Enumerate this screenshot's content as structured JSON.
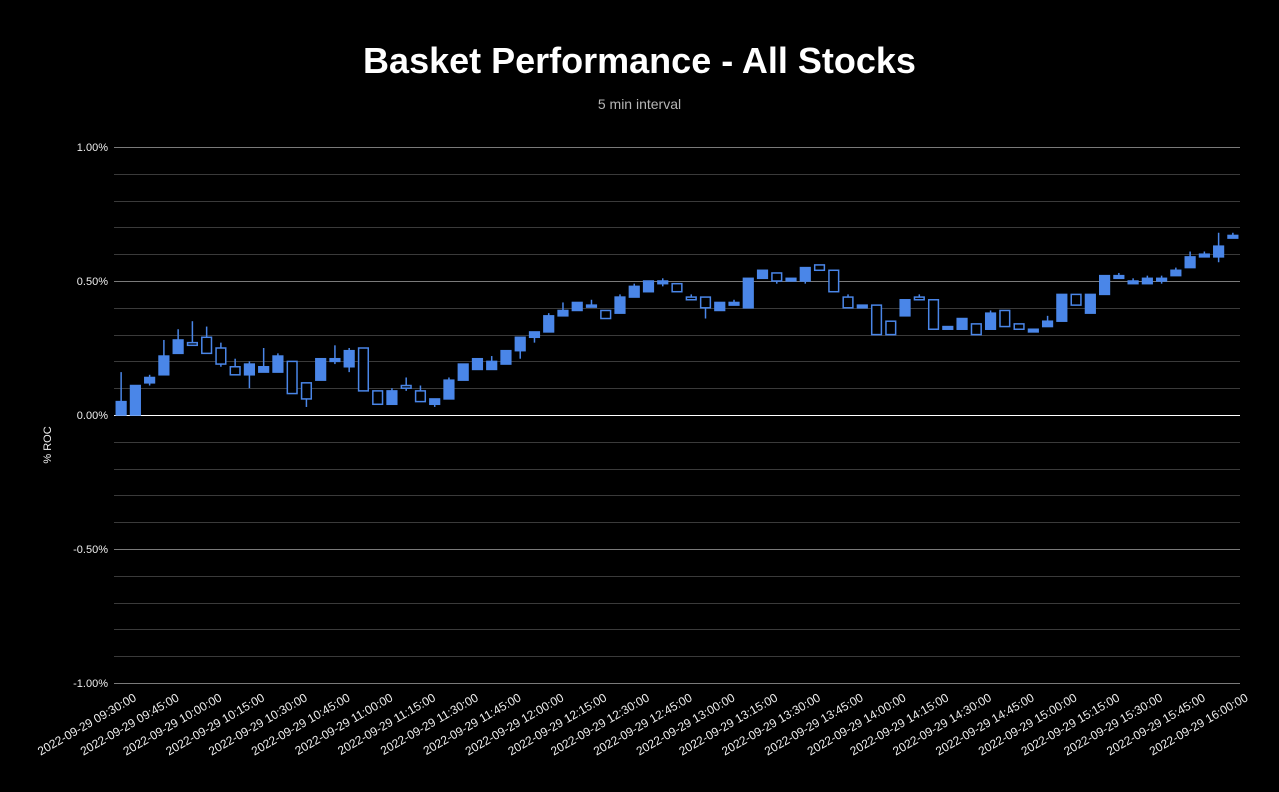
{
  "chart_data": {
    "type": "candlestick",
    "title": "Basket Performance - All Stocks",
    "subtitle": "5 min interval",
    "ylabel": "% ROC",
    "xlabel": "",
    "ylim": [
      -1.0,
      1.0
    ],
    "y_ticks": [
      "1.00%",
      "0.50%",
      "0.00%",
      "-0.50%",
      "-1.00%"
    ],
    "y_tick_values": [
      1.0,
      0.5,
      0.0,
      -0.5,
      -1.0
    ],
    "x_tick_labels": [
      "2022-09-29 09:30:00",
      "2022-09-29 09:45:00",
      "2022-09-29 10:00:00",
      "2022-09-29 10:15:00",
      "2022-09-29 10:30:00",
      "2022-09-29 10:45:00",
      "2022-09-29 11:00:00",
      "2022-09-29 11:15:00",
      "2022-09-29 11:30:00",
      "2022-09-29 11:45:00",
      "2022-09-29 12:00:00",
      "2022-09-29 12:15:00",
      "2022-09-29 12:30:00",
      "2022-09-29 12:45:00",
      "2022-09-29 13:00:00",
      "2022-09-29 13:15:00",
      "2022-09-29 13:30:00",
      "2022-09-29 13:45:00",
      "2022-09-29 14:00:00",
      "2022-09-29 14:15:00",
      "2022-09-29 14:30:00",
      "2022-09-29 14:45:00",
      "2022-09-29 15:00:00",
      "2022-09-29 15:15:00",
      "2022-09-29 15:30:00",
      "2022-09-29 15:45:00",
      "2022-09-29 16:00:00"
    ],
    "grid": true,
    "colors": {
      "candle": "#4a86e8",
      "background": "#000000",
      "gridline": "#3a3a3a",
      "major_gridline": "#7a7a7a",
      "zero_line": "#ffffff"
    },
    "series": [
      {
        "ohlc": [
          [
            0.0,
            0.16,
            0.0,
            0.05
          ],
          [
            0.0,
            0.11,
            0.0,
            0.11
          ],
          [
            0.12,
            0.15,
            0.11,
            0.14
          ],
          [
            0.15,
            0.28,
            0.15,
            0.22
          ],
          [
            0.23,
            0.32,
            0.23,
            0.28
          ],
          [
            0.27,
            0.35,
            0.26,
            0.26
          ],
          [
            0.29,
            0.33,
            0.23,
            0.23
          ],
          [
            0.25,
            0.27,
            0.18,
            0.19
          ],
          [
            0.18,
            0.21,
            0.15,
            0.15
          ],
          [
            0.15,
            0.2,
            0.1,
            0.19
          ],
          [
            0.16,
            0.25,
            0.16,
            0.18
          ],
          [
            0.16,
            0.23,
            0.16,
            0.22
          ],
          [
            0.2,
            0.2,
            0.08,
            0.08
          ],
          [
            0.12,
            0.12,
            0.03,
            0.06
          ],
          [
            0.13,
            0.21,
            0.13,
            0.21
          ],
          [
            0.2,
            0.26,
            0.19,
            0.21
          ],
          [
            0.18,
            0.25,
            0.16,
            0.24
          ],
          [
            0.25,
            0.25,
            0.09,
            0.09
          ],
          [
            0.09,
            0.09,
            0.04,
            0.04
          ],
          [
            0.04,
            0.1,
            0.04,
            0.09
          ],
          [
            0.11,
            0.14,
            0.09,
            0.1
          ],
          [
            0.09,
            0.11,
            0.05,
            0.05
          ],
          [
            0.04,
            0.06,
            0.03,
            0.06
          ],
          [
            0.06,
            0.14,
            0.06,
            0.13
          ],
          [
            0.13,
            0.19,
            0.13,
            0.19
          ],
          [
            0.17,
            0.21,
            0.17,
            0.21
          ],
          [
            0.17,
            0.22,
            0.17,
            0.2
          ],
          [
            0.19,
            0.24,
            0.19,
            0.24
          ],
          [
            0.24,
            0.28,
            0.21,
            0.29
          ],
          [
            0.29,
            0.31,
            0.27,
            0.31
          ],
          [
            0.31,
            0.38,
            0.31,
            0.37
          ],
          [
            0.37,
            0.42,
            0.37,
            0.39
          ],
          [
            0.39,
            0.42,
            0.39,
            0.42
          ],
          [
            0.41,
            0.43,
            0.41,
            0.41
          ],
          [
            0.39,
            0.39,
            0.36,
            0.36
          ],
          [
            0.38,
            0.45,
            0.38,
            0.44
          ],
          [
            0.44,
            0.49,
            0.44,
            0.48
          ],
          [
            0.46,
            0.5,
            0.46,
            0.5
          ],
          [
            0.49,
            0.51,
            0.48,
            0.5
          ],
          [
            0.49,
            0.49,
            0.46,
            0.46
          ],
          [
            0.44,
            0.45,
            0.43,
            0.43
          ],
          [
            0.44,
            0.44,
            0.36,
            0.4
          ],
          [
            0.39,
            0.42,
            0.39,
            0.42
          ],
          [
            0.41,
            0.43,
            0.41,
            0.42
          ],
          [
            0.4,
            0.51,
            0.4,
            0.51
          ],
          [
            0.51,
            0.54,
            0.51,
            0.54
          ],
          [
            0.53,
            0.53,
            0.49,
            0.5
          ],
          [
            0.5,
            0.51,
            0.5,
            0.51
          ],
          [
            0.5,
            0.55,
            0.49,
            0.55
          ],
          [
            0.56,
            0.56,
            0.54,
            0.54
          ],
          [
            0.54,
            0.54,
            0.46,
            0.46
          ],
          [
            0.44,
            0.45,
            0.4,
            0.4
          ],
          [
            0.4,
            0.41,
            0.4,
            0.41
          ],
          [
            0.41,
            0.41,
            0.3,
            0.3
          ],
          [
            0.35,
            0.35,
            0.3,
            0.3
          ],
          [
            0.37,
            0.43,
            0.37,
            0.43
          ],
          [
            0.44,
            0.45,
            0.43,
            0.43
          ],
          [
            0.43,
            0.43,
            0.32,
            0.32
          ],
          [
            0.32,
            0.33,
            0.32,
            0.33
          ],
          [
            0.32,
            0.36,
            0.32,
            0.36
          ],
          [
            0.34,
            0.34,
            0.3,
            0.3
          ],
          [
            0.32,
            0.39,
            0.32,
            0.38
          ],
          [
            0.39,
            0.39,
            0.33,
            0.33
          ],
          [
            0.34,
            0.34,
            0.32,
            0.32
          ],
          [
            0.31,
            0.32,
            0.31,
            0.32
          ],
          [
            0.33,
            0.37,
            0.33,
            0.35
          ],
          [
            0.35,
            0.45,
            0.35,
            0.45
          ],
          [
            0.45,
            0.45,
            0.41,
            0.41
          ],
          [
            0.38,
            0.45,
            0.38,
            0.45
          ],
          [
            0.45,
            0.52,
            0.45,
            0.52
          ],
          [
            0.51,
            0.53,
            0.51,
            0.52
          ],
          [
            0.49,
            0.51,
            0.49,
            0.5
          ],
          [
            0.49,
            0.52,
            0.49,
            0.51
          ],
          [
            0.5,
            0.52,
            0.49,
            0.51
          ],
          [
            0.52,
            0.55,
            0.52,
            0.54
          ],
          [
            0.55,
            0.61,
            0.55,
            0.59
          ],
          [
            0.59,
            0.61,
            0.59,
            0.6
          ],
          [
            0.59,
            0.68,
            0.57,
            0.63
          ],
          [
            0.66,
            0.68,
            0.66,
            0.67
          ]
        ]
      }
    ]
  }
}
